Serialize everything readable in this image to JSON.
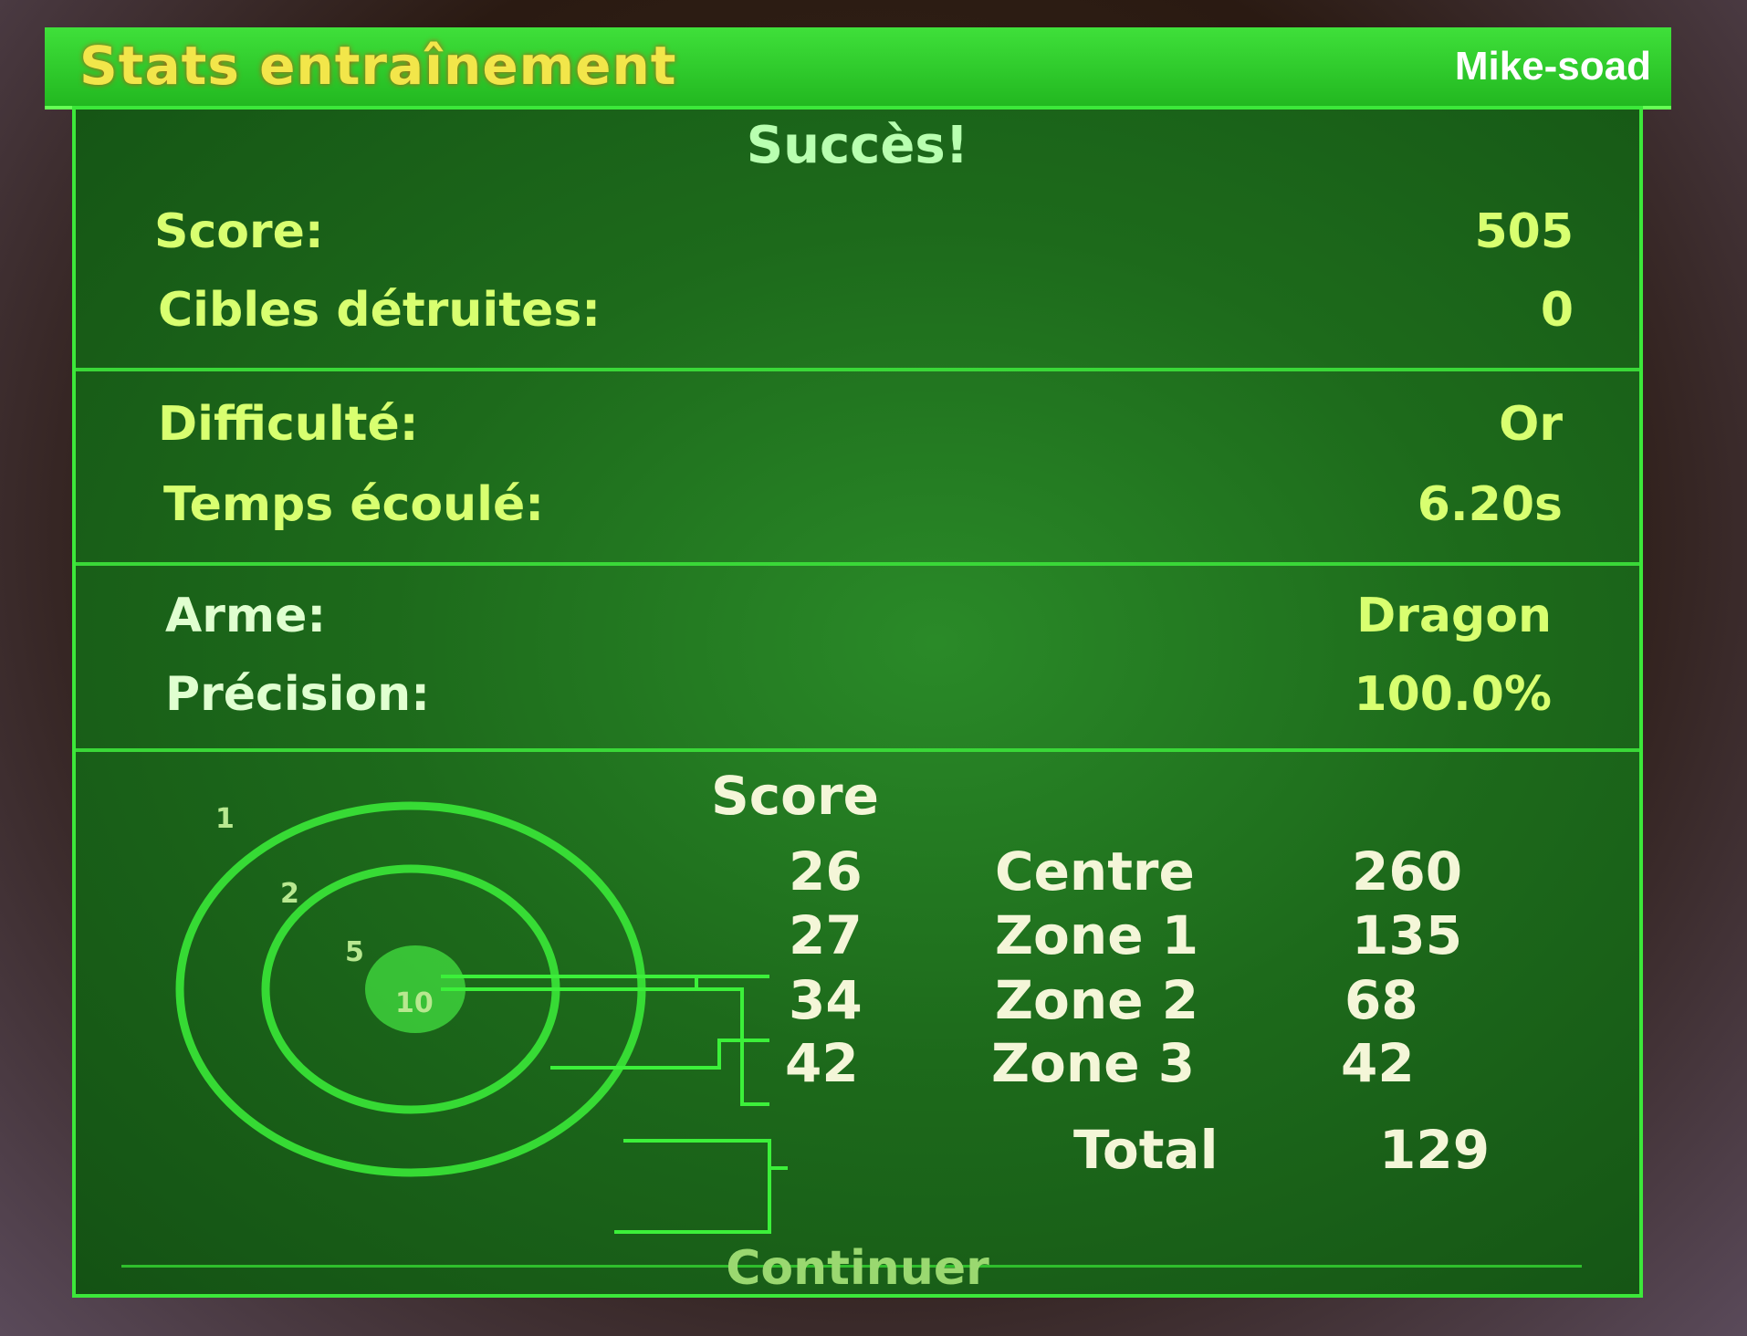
{
  "header": {
    "title": "Stats entraînement",
    "watermark": "Mike-soad"
  },
  "result": "Succès!",
  "stats": [
    {
      "label": "Score:",
      "value": "505"
    },
    {
      "label": "Cibles détruites:",
      "value": "0"
    },
    {
      "label": "Difficulté:",
      "value": "Or"
    },
    {
      "label": "Temps écoulé:",
      "value": "6.20s"
    },
    {
      "label": "Arme:",
      "value": "Dragon"
    },
    {
      "label": "Précision:",
      "value": "100.0%"
    }
  ],
  "score_breakdown": {
    "header": "Score",
    "target_rings": [
      "1",
      "2",
      "5",
      "10"
    ],
    "rows": [
      {
        "hits": "26",
        "zone": "Centre",
        "points": "260"
      },
      {
        "hits": "27",
        "zone": "Zone 1",
        "points": "135"
      },
      {
        "hits": "34",
        "zone": "Zone 2",
        "points": "68"
      },
      {
        "hits": "42",
        "zone": "Zone 3",
        "points": "42"
      }
    ],
    "total_label": "Total",
    "total_value": "129"
  },
  "footer": {
    "continue_label": "Continuer"
  },
  "colors": {
    "panel": "#1d6a1b",
    "border": "#3ce83a",
    "title": "#f2e64a",
    "text": "#d8ff70"
  }
}
